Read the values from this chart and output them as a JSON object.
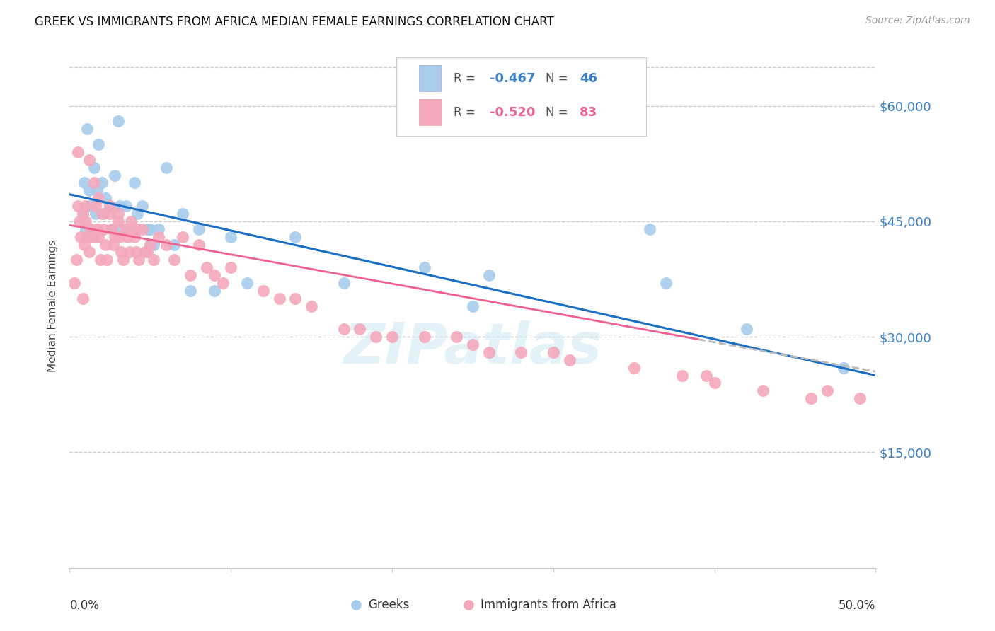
{
  "title": "GREEK VS IMMIGRANTS FROM AFRICA MEDIAN FEMALE EARNINGS CORRELATION CHART",
  "source": "Source: ZipAtlas.com",
  "ylabel": "Median Female Earnings",
  "xlim": [
    0.0,
    0.5
  ],
  "ylim": [
    0,
    68000
  ],
  "color_blue": "#a8ccec",
  "color_pink": "#f4a8bc",
  "color_blue_line": "#1a6fc4",
  "color_pink_line": "#f06090",
  "color_blue_text": "#3a7ec8",
  "color_pink_text": "#3a7ec8",
  "color_dashed": "#bbbbbb",
  "watermark": "ZIPatlas",
  "blue_intercept": 48500,
  "blue_slope": -47000,
  "pink_intercept": 44500,
  "pink_slope": -38000,
  "blue_x": [
    0.008,
    0.009,
    0.01,
    0.011,
    0.012,
    0.013,
    0.014,
    0.015,
    0.016,
    0.017,
    0.018,
    0.02,
    0.021,
    0.022,
    0.025,
    0.026,
    0.028,
    0.03,
    0.031,
    0.032,
    0.035,
    0.038,
    0.04,
    0.042,
    0.045,
    0.048,
    0.05,
    0.052,
    0.055,
    0.06,
    0.065,
    0.07,
    0.075,
    0.08,
    0.09,
    0.1,
    0.11,
    0.14,
    0.17,
    0.22,
    0.25,
    0.26,
    0.36,
    0.37,
    0.42,
    0.48
  ],
  "blue_y": [
    46000,
    50000,
    44000,
    57000,
    49000,
    47000,
    43000,
    52000,
    46000,
    49000,
    55000,
    50000,
    46000,
    48000,
    47000,
    44000,
    51000,
    58000,
    47000,
    44000,
    47000,
    44000,
    50000,
    46000,
    47000,
    44000,
    44000,
    42000,
    44000,
    52000,
    42000,
    46000,
    36000,
    44000,
    36000,
    43000,
    37000,
    43000,
    37000,
    39000,
    34000,
    38000,
    44000,
    37000,
    31000,
    26000
  ],
  "pink_x": [
    0.005,
    0.006,
    0.007,
    0.008,
    0.009,
    0.01,
    0.011,
    0.012,
    0.013,
    0.014,
    0.015,
    0.016,
    0.017,
    0.018,
    0.019,
    0.02,
    0.021,
    0.022,
    0.023,
    0.025,
    0.026,
    0.027,
    0.028,
    0.03,
    0.031,
    0.032,
    0.033,
    0.035,
    0.036,
    0.037,
    0.04,
    0.041,
    0.043,
    0.045,
    0.047,
    0.05,
    0.052,
    0.055,
    0.06,
    0.065,
    0.07,
    0.075,
    0.08,
    0.085,
    0.09,
    0.095,
    0.1,
    0.12,
    0.13,
    0.14,
    0.15,
    0.17,
    0.18,
    0.19,
    0.2,
    0.22,
    0.24,
    0.25,
    0.26,
    0.28,
    0.3,
    0.31,
    0.35,
    0.38,
    0.4,
    0.43,
    0.46,
    0.47,
    0.49,
    0.005,
    0.004,
    0.003,
    0.008,
    0.012,
    0.01,
    0.015,
    0.018,
    0.025,
    0.03,
    0.038,
    0.042,
    0.048,
    0.395
  ],
  "pink_y": [
    47000,
    45000,
    43000,
    46000,
    42000,
    45000,
    43000,
    41000,
    44000,
    43000,
    50000,
    47000,
    44000,
    43000,
    40000,
    46000,
    44000,
    42000,
    40000,
    46000,
    44000,
    42000,
    43000,
    45000,
    43000,
    41000,
    40000,
    44000,
    43000,
    41000,
    43000,
    41000,
    40000,
    44000,
    41000,
    42000,
    40000,
    43000,
    42000,
    40000,
    43000,
    38000,
    42000,
    39000,
    38000,
    37000,
    39000,
    36000,
    35000,
    35000,
    34000,
    31000,
    31000,
    30000,
    30000,
    30000,
    30000,
    29000,
    28000,
    28000,
    28000,
    27000,
    26000,
    25000,
    24000,
    23000,
    22000,
    23000,
    22000,
    54000,
    40000,
    37000,
    35000,
    53000,
    47000,
    43000,
    48000,
    47000,
    46000,
    45000,
    44000,
    41000,
    25000
  ]
}
